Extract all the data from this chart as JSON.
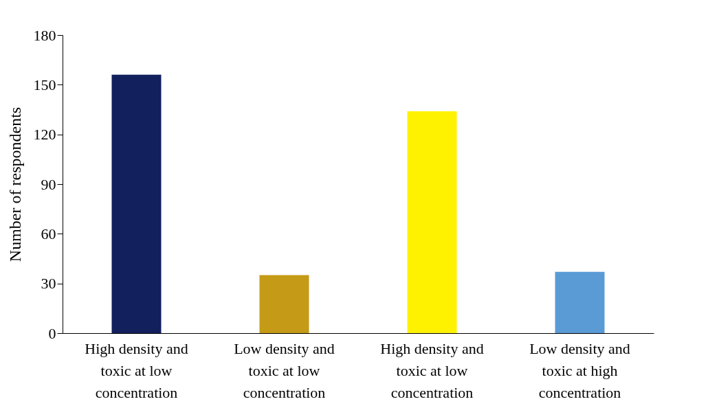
{
  "chart_data": {
    "type": "bar",
    "ylabel": "Number of respondents",
    "categories": [
      "High density and toxic at low concentration",
      "Low density and toxic at low concentration",
      "High density and toxic at low concentration",
      "Low density and toxic at high concentration"
    ],
    "values": [
      156,
      35,
      134,
      37
    ],
    "colors": [
      "#12205e",
      "#c49a17",
      "#fff200",
      "#5b9bd5"
    ],
    "ylim": [
      0,
      180
    ],
    "yticks": [
      0,
      30,
      60,
      90,
      120,
      150,
      180
    ],
    "grid": false
  }
}
